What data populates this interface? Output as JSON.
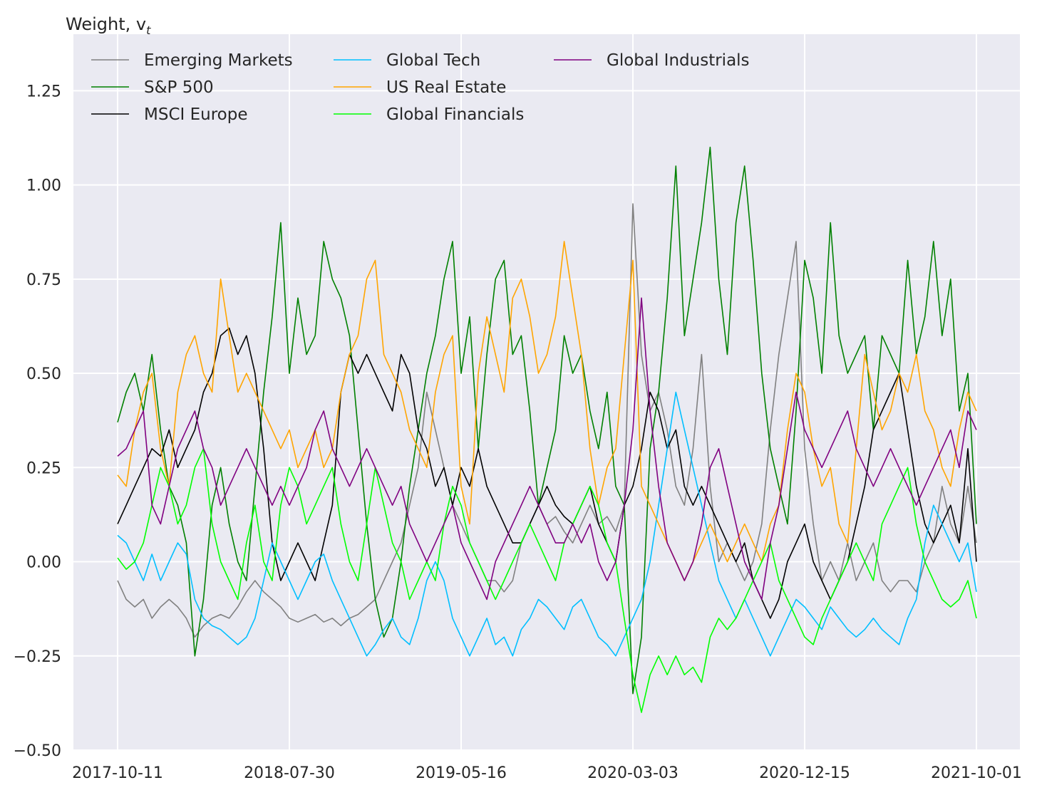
{
  "chart_data": {
    "type": "line",
    "title": "",
    "ylabel": "Weight, v",
    "ylabel_subscript": "t",
    "xlabel": "",
    "ylim": [
      -0.5,
      1.4
    ],
    "y_ticks": [
      -0.5,
      -0.25,
      0.0,
      0.25,
      0.5,
      0.75,
      1.0,
      1.25
    ],
    "y_tick_labels": [
      "−0.50",
      "−0.25",
      "0.00",
      "0.25",
      "0.50",
      "0.75",
      "1.00",
      "1.25"
    ],
    "x_tick_labels": [
      "2017-10-11",
      "2018-07-30",
      "2019-05-16",
      "2020-03-03",
      "2020-12-15",
      "2021-10-01"
    ],
    "x_range": [
      0,
      100
    ],
    "grid": true,
    "legend_position": "top-left",
    "legend_columns": 3,
    "series": [
      {
        "name": "Emerging Markets",
        "color": "#808080",
        "values": [
          -0.05,
          -0.1,
          -0.12,
          -0.1,
          -0.15,
          -0.12,
          -0.1,
          -0.12,
          -0.15,
          -0.2,
          -0.17,
          -0.15,
          -0.14,
          -0.15,
          -0.12,
          -0.08,
          -0.05,
          -0.08,
          -0.1,
          -0.12,
          -0.15,
          -0.16,
          -0.15,
          -0.14,
          -0.16,
          -0.15,
          -0.17,
          -0.15,
          -0.14,
          -0.12,
          -0.1,
          -0.05,
          0.0,
          0.05,
          0.15,
          0.25,
          0.45,
          0.35,
          0.25,
          0.15,
          0.1,
          0.05,
          0.0,
          -0.05,
          -0.05,
          -0.08,
          -0.05,
          0.05,
          0.1,
          0.15,
          0.1,
          0.12,
          0.08,
          0.05,
          0.1,
          0.15,
          0.1,
          0.12,
          0.08,
          0.15,
          0.95,
          0.55,
          0.4,
          0.45,
          0.35,
          0.2,
          0.15,
          0.3,
          0.55,
          0.2,
          0.0,
          0.05,
          0.0,
          -0.05,
          0.0,
          0.1,
          0.35,
          0.55,
          0.7,
          0.85,
          0.3,
          0.1,
          -0.05,
          0.0,
          -0.05,
          0.05,
          -0.05,
          0.0,
          0.05,
          -0.05,
          -0.08,
          -0.05,
          -0.05,
          -0.08,
          0.0,
          0.05,
          0.2,
          0.1,
          0.05,
          0.2,
          0.05
        ]
      },
      {
        "name": "S&P 500",
        "color": "#008000",
        "values": [
          0.37,
          0.45,
          0.5,
          0.4,
          0.55,
          0.35,
          0.2,
          0.15,
          0.05,
          -0.25,
          -0.1,
          0.15,
          0.25,
          0.1,
          0.0,
          -0.05,
          0.2,
          0.45,
          0.65,
          0.9,
          0.5,
          0.7,
          0.55,
          0.6,
          0.85,
          0.75,
          0.7,
          0.6,
          0.35,
          0.1,
          -0.1,
          -0.2,
          -0.15,
          0.0,
          0.2,
          0.35,
          0.5,
          0.6,
          0.75,
          0.85,
          0.5,
          0.65,
          0.3,
          0.55,
          0.75,
          0.8,
          0.55,
          0.6,
          0.4,
          0.15,
          0.25,
          0.35,
          0.6,
          0.5,
          0.55,
          0.4,
          0.3,
          0.45,
          0.2,
          0.15,
          -0.35,
          -0.2,
          0.3,
          0.45,
          0.7,
          1.05,
          0.6,
          0.75,
          0.9,
          1.1,
          0.75,
          0.55,
          0.9,
          1.05,
          0.8,
          0.5,
          0.3,
          0.2,
          0.1,
          0.4,
          0.8,
          0.7,
          0.5,
          0.9,
          0.6,
          0.5,
          0.55,
          0.6,
          0.35,
          0.6,
          0.55,
          0.5,
          0.8,
          0.55,
          0.65,
          0.85,
          0.6,
          0.75,
          0.4,
          0.5,
          0.1
        ]
      },
      {
        "name": "MSCI Europe",
        "color": "#000000",
        "values": [
          0.1,
          0.15,
          0.2,
          0.25,
          0.3,
          0.28,
          0.35,
          0.25,
          0.3,
          0.35,
          0.45,
          0.5,
          0.6,
          0.62,
          0.55,
          0.6,
          0.5,
          0.3,
          0.05,
          -0.05,
          0.0,
          0.05,
          0.0,
          -0.05,
          0.05,
          0.15,
          0.45,
          0.55,
          0.5,
          0.55,
          0.5,
          0.45,
          0.4,
          0.55,
          0.5,
          0.35,
          0.3,
          0.2,
          0.25,
          0.15,
          0.25,
          0.2,
          0.3,
          0.2,
          0.15,
          0.1,
          0.05,
          0.05,
          0.1,
          0.15,
          0.2,
          0.15,
          0.12,
          0.1,
          0.15,
          0.2,
          0.1,
          0.05,
          0.0,
          0.15,
          0.2,
          0.3,
          0.45,
          0.4,
          0.3,
          0.35,
          0.2,
          0.15,
          0.2,
          0.15,
          0.1,
          0.05,
          0.0,
          0.05,
          -0.05,
          -0.1,
          -0.15,
          -0.1,
          0.0,
          0.05,
          0.1,
          0.0,
          -0.05,
          -0.1,
          -0.05,
          0.0,
          0.1,
          0.2,
          0.35,
          0.4,
          0.45,
          0.5,
          0.35,
          0.2,
          0.1,
          0.05,
          0.1,
          0.15,
          0.05,
          0.3,
          0.0
        ]
      },
      {
        "name": "Global Tech",
        "color": "#00bfff",
        "values": [
          0.07,
          0.05,
          0.0,
          -0.05,
          0.02,
          -0.05,
          0.0,
          0.05,
          0.02,
          -0.1,
          -0.15,
          -0.17,
          -0.18,
          -0.2,
          -0.22,
          -0.2,
          -0.15,
          -0.05,
          0.05,
          0.0,
          -0.05,
          -0.1,
          -0.05,
          0.0,
          0.02,
          -0.05,
          -0.1,
          -0.15,
          -0.2,
          -0.25,
          -0.22,
          -0.18,
          -0.15,
          -0.2,
          -0.22,
          -0.15,
          -0.05,
          0.0,
          -0.05,
          -0.15,
          -0.2,
          -0.25,
          -0.2,
          -0.15,
          -0.22,
          -0.2,
          -0.25,
          -0.18,
          -0.15,
          -0.1,
          -0.12,
          -0.15,
          -0.18,
          -0.12,
          -0.1,
          -0.15,
          -0.2,
          -0.22,
          -0.25,
          -0.2,
          -0.15,
          -0.1,
          0.0,
          0.15,
          0.3,
          0.45,
          0.35,
          0.25,
          0.15,
          0.05,
          -0.05,
          -0.1,
          -0.15,
          -0.1,
          -0.15,
          -0.2,
          -0.25,
          -0.2,
          -0.15,
          -0.1,
          -0.12,
          -0.15,
          -0.18,
          -0.12,
          -0.15,
          -0.18,
          -0.2,
          -0.18,
          -0.15,
          -0.18,
          -0.2,
          -0.22,
          -0.15,
          -0.1,
          0.05,
          0.15,
          0.1,
          0.05,
          0.0,
          0.05,
          -0.08
        ]
      },
      {
        "name": "US Real Estate",
        "color": "#ffa500",
        "values": [
          0.23,
          0.2,
          0.35,
          0.45,
          0.5,
          0.3,
          0.2,
          0.45,
          0.55,
          0.6,
          0.5,
          0.45,
          0.75,
          0.6,
          0.45,
          0.5,
          0.45,
          0.4,
          0.35,
          0.3,
          0.35,
          0.25,
          0.3,
          0.35,
          0.25,
          0.3,
          0.45,
          0.55,
          0.6,
          0.75,
          0.8,
          0.55,
          0.5,
          0.45,
          0.35,
          0.3,
          0.25,
          0.45,
          0.55,
          0.6,
          0.2,
          0.1,
          0.5,
          0.65,
          0.55,
          0.45,
          0.7,
          0.75,
          0.65,
          0.5,
          0.55,
          0.65,
          0.85,
          0.7,
          0.55,
          0.3,
          0.15,
          0.25,
          0.3,
          0.55,
          0.8,
          0.2,
          0.15,
          0.1,
          0.05,
          0.0,
          -0.05,
          0.0,
          0.05,
          0.1,
          0.05,
          0.0,
          0.05,
          0.1,
          0.05,
          0.0,
          0.1,
          0.15,
          0.35,
          0.5,
          0.45,
          0.3,
          0.2,
          0.25,
          0.1,
          0.05,
          0.3,
          0.55,
          0.45,
          0.35,
          0.4,
          0.5,
          0.45,
          0.55,
          0.4,
          0.35,
          0.25,
          0.2,
          0.35,
          0.45,
          0.4
        ]
      },
      {
        "name": "Global Financials",
        "color": "#00ff00",
        "values": [
          0.01,
          -0.02,
          0.0,
          0.05,
          0.15,
          0.25,
          0.2,
          0.1,
          0.15,
          0.25,
          0.3,
          0.1,
          0.0,
          -0.05,
          -0.1,
          0.05,
          0.15,
          0.0,
          -0.05,
          0.15,
          0.25,
          0.2,
          0.1,
          0.15,
          0.2,
          0.25,
          0.1,
          0.0,
          -0.05,
          0.1,
          0.25,
          0.15,
          0.05,
          0.0,
          -0.1,
          -0.05,
          0.0,
          -0.05,
          0.1,
          0.2,
          0.15,
          0.05,
          0.0,
          -0.05,
          -0.1,
          -0.05,
          0.0,
          0.05,
          0.1,
          0.05,
          0.0,
          -0.05,
          0.05,
          0.1,
          0.15,
          0.2,
          0.15,
          0.05,
          0.0,
          -0.15,
          -0.3,
          -0.4,
          -0.3,
          -0.25,
          -0.3,
          -0.25,
          -0.3,
          -0.28,
          -0.32,
          -0.2,
          -0.15,
          -0.18,
          -0.15,
          -0.1,
          -0.05,
          0.0,
          0.05,
          -0.05,
          -0.1,
          -0.15,
          -0.2,
          -0.22,
          -0.15,
          -0.1,
          -0.05,
          0.0,
          0.05,
          0.0,
          -0.05,
          0.1,
          0.15,
          0.2,
          0.25,
          0.1,
          0.0,
          -0.05,
          -0.1,
          -0.12,
          -0.1,
          -0.05,
          -0.15
        ]
      },
      {
        "name": "Global Industrials",
        "color": "#800080",
        "values": [
          0.28,
          0.3,
          0.35,
          0.4,
          0.15,
          0.1,
          0.2,
          0.3,
          0.35,
          0.4,
          0.3,
          0.25,
          0.15,
          0.2,
          0.25,
          0.3,
          0.25,
          0.2,
          0.15,
          0.2,
          0.15,
          0.2,
          0.25,
          0.35,
          0.4,
          0.3,
          0.25,
          0.2,
          0.25,
          0.3,
          0.25,
          0.2,
          0.15,
          0.2,
          0.1,
          0.05,
          0.0,
          0.05,
          0.1,
          0.15,
          0.05,
          0.0,
          -0.05,
          -0.1,
          0.0,
          0.05,
          0.1,
          0.15,
          0.2,
          0.15,
          0.1,
          0.05,
          0.05,
          0.1,
          0.05,
          0.1,
          0.0,
          -0.05,
          0.0,
          0.15,
          0.35,
          0.7,
          0.4,
          0.2,
          0.05,
          0.0,
          -0.05,
          0.0,
          0.1,
          0.25,
          0.3,
          0.2,
          0.1,
          0.0,
          -0.05,
          -0.1,
          0.05,
          0.15,
          0.3,
          0.45,
          0.35,
          0.3,
          0.25,
          0.3,
          0.35,
          0.4,
          0.3,
          0.25,
          0.2,
          0.25,
          0.3,
          0.25,
          0.2,
          0.15,
          0.2,
          0.25,
          0.3,
          0.35,
          0.25,
          0.4,
          0.35
        ]
      }
    ]
  }
}
